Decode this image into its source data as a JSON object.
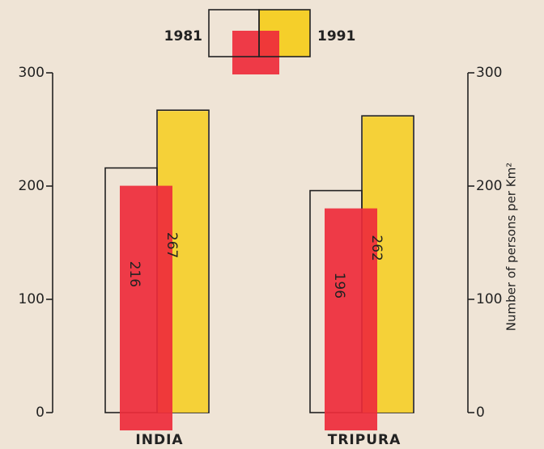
{
  "chart_data": {
    "type": "bar",
    "categories": [
      "INDIA",
      "TRIPURA"
    ],
    "series": [
      {
        "name": "1981",
        "color": "#ee2b3b",
        "values": [
          216,
          196
        ]
      },
      {
        "name": "1991",
        "color": "#f5cf2a",
        "values": [
          267,
          262
        ]
      }
    ],
    "ylim": [
      0,
      300
    ],
    "yticks": [
      0,
      100,
      200,
      300
    ],
    "y2lim": [
      0,
      300
    ],
    "y2ticks": [
      0,
      100,
      200,
      300
    ],
    "y2label": "Number of persons per Km²",
    "legend": "top"
  }
}
